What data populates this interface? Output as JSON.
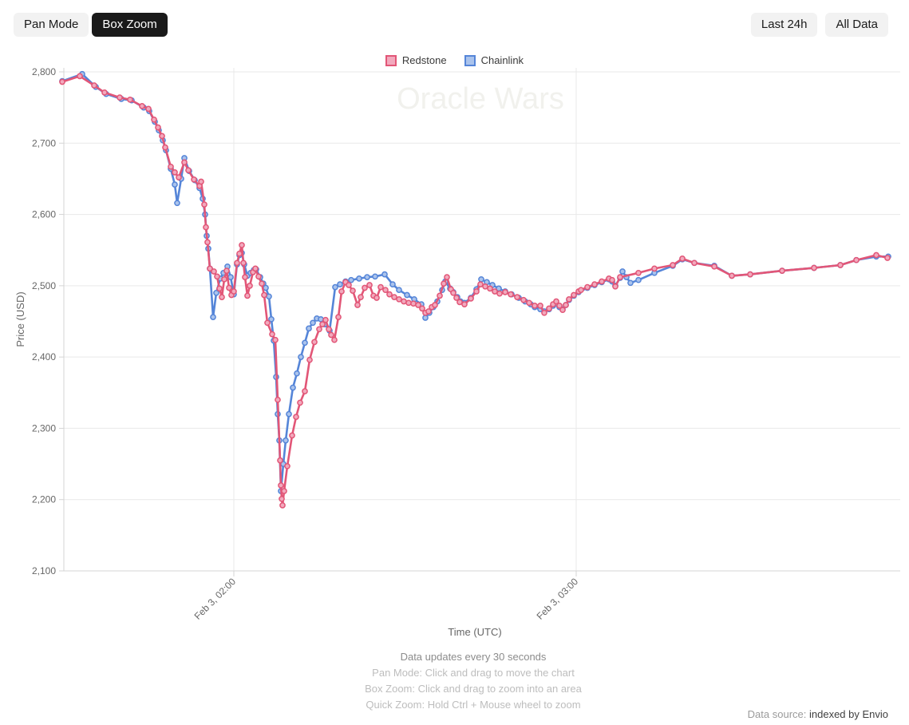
{
  "toolbar": {
    "pan_mode": "Pan Mode",
    "box_zoom": "Box Zoom",
    "last_24h": "Last 24h",
    "all_data": "All Data",
    "active_mode": "Box Zoom"
  },
  "legend": [
    {
      "label": "Redstone",
      "color": "#e25677",
      "fill": "#f2a9bd"
    },
    {
      "label": "Chainlink",
      "color": "#5585d8",
      "fill": "#aac3ec"
    }
  ],
  "watermark": "Oracle Wars",
  "footer": {
    "line1": "Data updates every 30 seconds",
    "line2": "Pan Mode: Click and drag to move the chart",
    "line3": "Box Zoom: Click and drag to zoom into an area",
    "line4": "Quick Zoom: Hold Ctrl + Mouse wheel to zoom"
  },
  "datasource": {
    "prefix": "Data source:",
    "link": "indexed by Envio"
  },
  "chart_data": {
    "type": "line",
    "xlabel": "Time (UTC)",
    "ylabel": "Price (USD)",
    "ylim": [
      2100,
      2800
    ],
    "grid": true,
    "legend_position": "top-center",
    "watermark_color": "#f1f1ed",
    "grid_color": "#e9e9e9",
    "axis_color": "#d4d4d4",
    "tick_text_color": "#666666",
    "y_ticks": [
      {
        "label": "2,100",
        "value": 2100
      },
      {
        "label": "2,200",
        "value": 2200
      },
      {
        "label": "2,300",
        "value": 2300
      },
      {
        "label": "2,400",
        "value": 2400
      },
      {
        "label": "2,500",
        "value": 2500
      },
      {
        "label": "2,600",
        "value": 2600
      },
      {
        "label": "2,700",
        "value": 2700
      },
      {
        "label": "2,800",
        "value": 2800
      }
    ],
    "x_ticks": [
      {
        "label": "Feb 3, 02:00",
        "x": 293
      },
      {
        "label": "Feb 3, 03:00",
        "x": 722
      }
    ],
    "x_note": "x values are horizontal positions; 02:00 UTC = 293, 03:00 UTC = 722 (≈7.15 px per minute, series spans ≈01:30–03:55 UTC)",
    "series": [
      {
        "name": "Chainlink",
        "color": "#5585d8",
        "point_fill": "#aac3ec",
        "points": [
          [
            78,
            2787
          ],
          [
            103,
            2797
          ],
          [
            120,
            2779
          ],
          [
            133,
            2769
          ],
          [
            152,
            2762
          ],
          [
            165,
            2760
          ],
          [
            180,
            2750
          ],
          [
            187,
            2745
          ],
          [
            194,
            2730
          ],
          [
            199,
            2718
          ],
          [
            204,
            2704
          ],
          [
            208,
            2690
          ],
          [
            214,
            2664
          ],
          [
            219,
            2642
          ],
          [
            222,
            2616
          ],
          [
            227,
            2650
          ],
          [
            231,
            2679
          ],
          [
            237,
            2661
          ],
          [
            244,
            2648
          ],
          [
            250,
            2637
          ],
          [
            254,
            2622
          ],
          [
            257,
            2600
          ],
          [
            259,
            2570
          ],
          [
            261,
            2552
          ],
          [
            263,
            2524
          ],
          [
            267,
            2456
          ],
          [
            271,
            2490
          ],
          [
            276,
            2510
          ],
          [
            280,
            2518
          ],
          [
            285,
            2527
          ],
          [
            289,
            2512
          ],
          [
            293,
            2488
          ],
          [
            297,
            2530
          ],
          [
            300,
            2543
          ],
          [
            303,
            2546
          ],
          [
            306,
            2530
          ],
          [
            310,
            2514
          ],
          [
            314,
            2518
          ],
          [
            318,
            2522
          ],
          [
            321,
            2523
          ],
          [
            326,
            2512
          ],
          [
            330,
            2503
          ],
          [
            333,
            2497
          ],
          [
            337,
            2485
          ],
          [
            340,
            2453
          ],
          [
            343,
            2423
          ],
          [
            346,
            2372
          ],
          [
            348,
            2320
          ],
          [
            350,
            2283
          ],
          [
            352,
            2212
          ],
          [
            355,
            2250
          ],
          [
            358,
            2283
          ],
          [
            362,
            2320
          ],
          [
            367,
            2357
          ],
          [
            372,
            2377
          ],
          [
            377,
            2400
          ],
          [
            382,
            2420
          ],
          [
            387,
            2440
          ],
          [
            392,
            2448
          ],
          [
            397,
            2454
          ],
          [
            402,
            2453
          ],
          [
            407,
            2446
          ],
          [
            413,
            2437
          ],
          [
            420,
            2498
          ],
          [
            426,
            2502
          ],
          [
            433,
            2506
          ],
          [
            440,
            2508
          ],
          [
            450,
            2510
          ],
          [
            460,
            2512
          ],
          [
            470,
            2513
          ],
          [
            482,
            2516
          ],
          [
            492,
            2502
          ],
          [
            500,
            2494
          ],
          [
            510,
            2487
          ],
          [
            519,
            2481
          ],
          [
            528,
            2474
          ],
          [
            533,
            2455
          ],
          [
            538,
            2462
          ],
          [
            543,
            2470
          ],
          [
            548,
            2478
          ],
          [
            554,
            2494
          ],
          [
            558,
            2506
          ],
          [
            564,
            2496
          ],
          [
            568,
            2491
          ],
          [
            573,
            2484
          ],
          [
            577,
            2478
          ],
          [
            582,
            2476
          ],
          [
            590,
            2483
          ],
          [
            597,
            2495
          ],
          [
            603,
            2509
          ],
          [
            610,
            2505
          ],
          [
            617,
            2501
          ],
          [
            625,
            2496
          ],
          [
            633,
            2492
          ],
          [
            641,
            2488
          ],
          [
            650,
            2483
          ],
          [
            658,
            2478
          ],
          [
            665,
            2474
          ],
          [
            670,
            2470
          ],
          [
            677,
            2467
          ],
          [
            682,
            2464
          ],
          [
            688,
            2467
          ],
          [
            693,
            2472
          ],
          [
            697,
            2475
          ],
          [
            701,
            2470
          ],
          [
            705,
            2467
          ],
          [
            709,
            2473
          ],
          [
            713,
            2480
          ],
          [
            719,
            2486
          ],
          [
            725,
            2491
          ],
          [
            736,
            2497
          ],
          [
            745,
            2501
          ],
          [
            754,
            2505
          ],
          [
            763,
            2509
          ],
          [
            767,
            2506
          ],
          [
            771,
            2500
          ],
          [
            777,
            2511
          ],
          [
            780,
            2520
          ],
          [
            785,
            2512
          ],
          [
            790,
            2504
          ],
          [
            800,
            2508
          ],
          [
            820,
            2518
          ],
          [
            843,
            2528
          ],
          [
            855,
            2537
          ],
          [
            870,
            2532
          ],
          [
            895,
            2528
          ],
          [
            917,
            2514
          ],
          [
            940,
            2516
          ],
          [
            980,
            2521
          ],
          [
            1020,
            2525
          ],
          [
            1053,
            2529
          ],
          [
            1073,
            2536
          ],
          [
            1098,
            2541
          ],
          [
            1113,
            2541
          ]
        ]
      },
      {
        "name": "Redstone",
        "color": "#e25677",
        "point_fill": "#f2a9bd",
        "points": [
          [
            78,
            2786
          ],
          [
            100,
            2794
          ],
          [
            118,
            2781
          ],
          [
            131,
            2771
          ],
          [
            150,
            2764
          ],
          [
            163,
            2761
          ],
          [
            178,
            2752
          ],
          [
            186,
            2748
          ],
          [
            193,
            2733
          ],
          [
            198,
            2722
          ],
          [
            203,
            2710
          ],
          [
            207,
            2694
          ],
          [
            214,
            2667
          ],
          [
            219,
            2659
          ],
          [
            224,
            2652
          ],
          [
            231,
            2673
          ],
          [
            236,
            2662
          ],
          [
            243,
            2649
          ],
          [
            250,
            2640
          ],
          [
            252,
            2646
          ],
          [
            256,
            2614
          ],
          [
            258,
            2582
          ],
          [
            260,
            2561
          ],
          [
            263,
            2524
          ],
          [
            268,
            2520
          ],
          [
            272,
            2513
          ],
          [
            275,
            2496
          ],
          [
            278,
            2484
          ],
          [
            281,
            2509
          ],
          [
            284,
            2521
          ],
          [
            287,
            2497
          ],
          [
            290,
            2487
          ],
          [
            293,
            2492
          ],
          [
            297,
            2532
          ],
          [
            300,
            2545
          ],
          [
            303,
            2557
          ],
          [
            305,
            2532
          ],
          [
            307,
            2512
          ],
          [
            310,
            2486
          ],
          [
            313,
            2500
          ],
          [
            317,
            2519
          ],
          [
            320,
            2524
          ],
          [
            324,
            2513
          ],
          [
            328,
            2503
          ],
          [
            331,
            2487
          ],
          [
            335,
            2448
          ],
          [
            341,
            2432
          ],
          [
            345,
            2424
          ],
          [
            348,
            2340
          ],
          [
            351,
            2255
          ],
          [
            352,
            2220
          ],
          [
            353,
            2201
          ],
          [
            354,
            2192
          ],
          [
            356,
            2212
          ],
          [
            360,
            2247
          ],
          [
            366,
            2290
          ],
          [
            371,
            2316
          ],
          [
            376,
            2336
          ],
          [
            382,
            2352
          ],
          [
            388,
            2396
          ],
          [
            394,
            2421
          ],
          [
            400,
            2439
          ],
          [
            404,
            2446
          ],
          [
            408,
            2452
          ],
          [
            412,
            2439
          ],
          [
            415,
            2431
          ],
          [
            419,
            2424
          ],
          [
            424,
            2456
          ],
          [
            428,
            2492
          ],
          [
            433,
            2505
          ],
          [
            437,
            2501
          ],
          [
            442,
            2493
          ],
          [
            448,
            2473
          ],
          [
            452,
            2484
          ],
          [
            457,
            2497
          ],
          [
            463,
            2501
          ],
          [
            468,
            2486
          ],
          [
            472,
            2483
          ],
          [
            477,
            2498
          ],
          [
            483,
            2494
          ],
          [
            488,
            2488
          ],
          [
            494,
            2484
          ],
          [
            500,
            2481
          ],
          [
            506,
            2478
          ],
          [
            512,
            2476
          ],
          [
            518,
            2475
          ],
          [
            524,
            2473
          ],
          [
            529,
            2468
          ],
          [
            533,
            2462
          ],
          [
            537,
            2464
          ],
          [
            541,
            2470
          ],
          [
            545,
            2473
          ],
          [
            551,
            2486
          ],
          [
            556,
            2503
          ],
          [
            560,
            2512
          ],
          [
            565,
            2495
          ],
          [
            568,
            2490
          ],
          [
            572,
            2483
          ],
          [
            576,
            2477
          ],
          [
            582,
            2474
          ],
          [
            590,
            2482
          ],
          [
            597,
            2492
          ],
          [
            602,
            2502
          ],
          [
            608,
            2499
          ],
          [
            614,
            2496
          ],
          [
            620,
            2492
          ],
          [
            626,
            2489
          ],
          [
            633,
            2491
          ],
          [
            640,
            2488
          ],
          [
            648,
            2484
          ],
          [
            656,
            2480
          ],
          [
            663,
            2476
          ],
          [
            670,
            2472
          ],
          [
            677,
            2472
          ],
          [
            682,
            2462
          ],
          [
            688,
            2468
          ],
          [
            693,
            2474
          ],
          [
            697,
            2478
          ],
          [
            701,
            2472
          ],
          [
            705,
            2466
          ],
          [
            709,
            2473
          ],
          [
            713,
            2481
          ],
          [
            719,
            2487
          ],
          [
            725,
            2492
          ],
          [
            728,
            2494
          ],
          [
            736,
            2498
          ],
          [
            745,
            2502
          ],
          [
            754,
            2506
          ],
          [
            763,
            2510
          ],
          [
            767,
            2508
          ],
          [
            771,
            2499
          ],
          [
            777,
            2512
          ],
          [
            800,
            2518
          ],
          [
            820,
            2524
          ],
          [
            843,
            2529
          ],
          [
            855,
            2538
          ],
          [
            870,
            2532
          ],
          [
            895,
            2527
          ],
          [
            917,
            2514
          ],
          [
            940,
            2516
          ],
          [
            980,
            2521
          ],
          [
            1020,
            2525
          ],
          [
            1053,
            2529
          ],
          [
            1073,
            2536
          ],
          [
            1098,
            2543
          ],
          [
            1112,
            2539
          ]
        ]
      }
    ]
  }
}
